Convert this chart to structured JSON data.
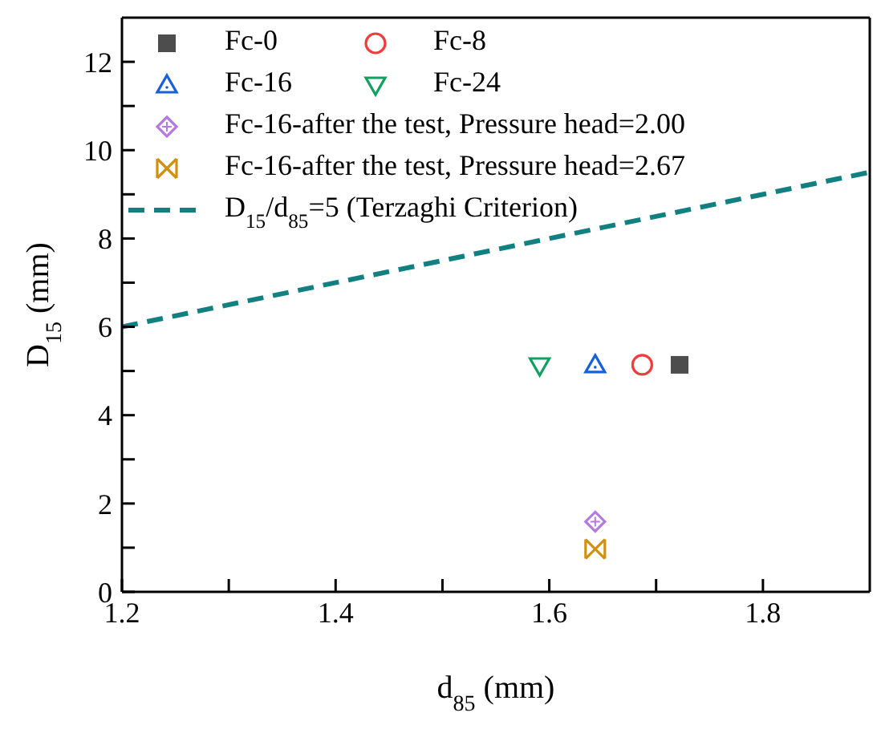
{
  "chart_data": {
    "type": "scatter",
    "xlabel": "d$_{85}$ (mm)",
    "ylabel": "D$_{15}$ (mm)",
    "xlim": [
      1.2,
      1.9
    ],
    "xticks": [
      1.2,
      {
        "value": 1.3,
        "label": null
      },
      1.4,
      {
        "value": 1.5,
        "label": null
      },
      1.6,
      {
        "value": 1.7,
        "label": null
      },
      1.8
    ],
    "ylim": [
      0,
      13
    ],
    "yticks": [
      0,
      {
        "value": 1,
        "label": null
      },
      2,
      {
        "value": 3,
        "label": null
      },
      4,
      {
        "value": 5,
        "label": null
      },
      6,
      {
        "value": 7,
        "label": null
      },
      8,
      {
        "value": 9,
        "label": null
      },
      10,
      {
        "value": 11,
        "label": null
      },
      12
    ],
    "grid": false,
    "legend": "top left",
    "series": [
      {
        "name": "Fc-0",
        "marker": "square",
        "color": "#4d4d4d",
        "x": [
          1.722
        ],
        "values": [
          5.14
        ]
      },
      {
        "name": "Fc-8",
        "marker": "circle",
        "color": "#f03c3c",
        "x": [
          1.687
        ],
        "values": [
          5.14
        ]
      },
      {
        "name": "Fc-16",
        "marker": "triangle",
        "color": "#1660d8",
        "x": [
          1.643
        ],
        "values": [
          5.14
        ]
      },
      {
        "name": "Fc-24",
        "marker": "triangle-down",
        "color": "#12a060",
        "x": [
          1.591
        ],
        "values": [
          5.12
        ]
      },
      {
        "name": "Fc-16-after the test, Pressure head=2.00",
        "marker": "diamond",
        "color": "#b47ae0",
        "x": [
          1.643
        ],
        "values": [
          1.59
        ]
      },
      {
        "name": "Fc-16-after the test, Pressure head=2.67",
        "marker": "cross",
        "color": "#d09010",
        "x": [
          1.643
        ],
        "values": [
          0.97
        ]
      },
      {
        "name": "D$_{15}$/d$_{85}$=5 (Terzaghi Criterion)",
        "type": "line",
        "line_style": "dashed",
        "marker": "none",
        "color": "#128080",
        "x": [
          1.2,
          1.9
        ],
        "values": [
          6,
          9.5
        ]
      }
    ]
  }
}
